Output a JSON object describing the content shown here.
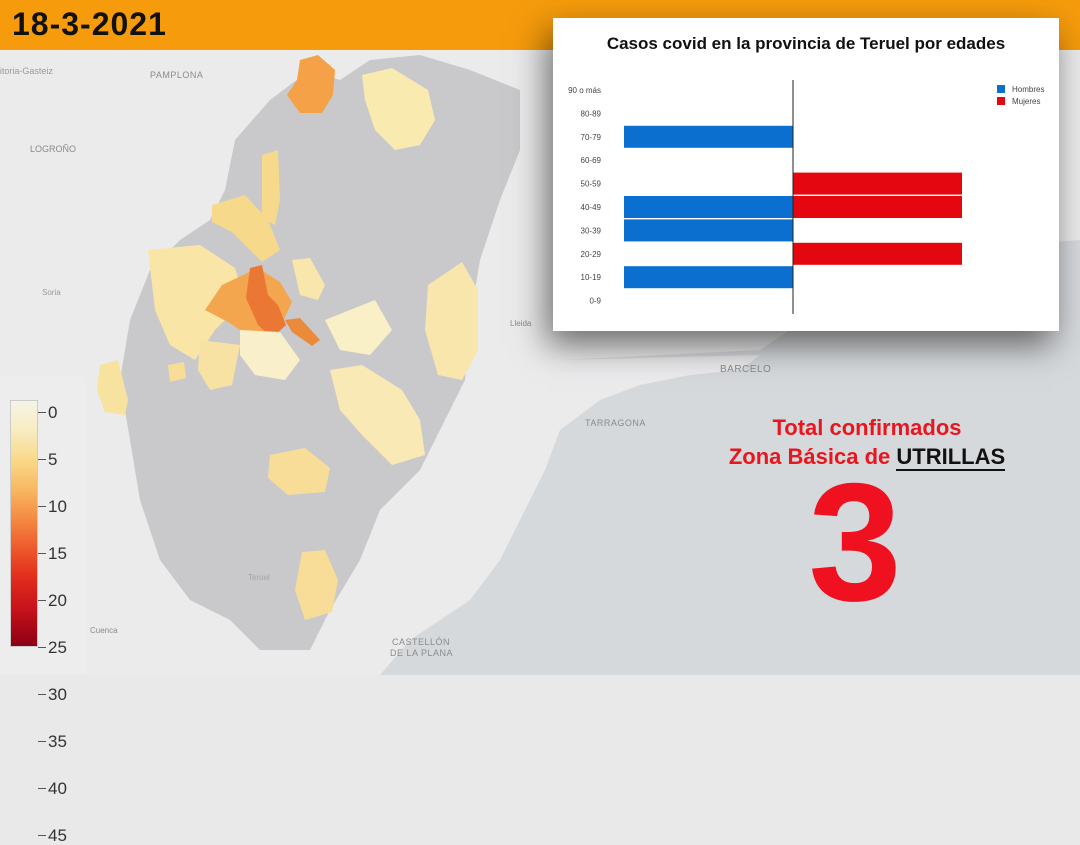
{
  "date": "18-3-2021",
  "map_labels": {
    "pamplona": "PAMPLONA",
    "logrono": "LOGROÑO",
    "vitoria": "Vitoria-Gasteiz",
    "soria": "Soria",
    "lleida": "Lleida",
    "barcelona": "BARCELO",
    "tarragona": "TARRAGONA",
    "cuenca": "Cuenca",
    "castellon1": "CASTELLÓN",
    "castellon2": "DE LA PLANA",
    "teruel": "Teruel"
  },
  "legend": {
    "ticks": [
      "0",
      "5",
      "10",
      "15",
      "20",
      "25",
      "30",
      "35",
      "40",
      "45"
    ]
  },
  "colors": {
    "date_bar": "#f59b0c",
    "hombres": "#0a6fcf",
    "mujeres": "#e4070f",
    "total_text": "#e8161e"
  },
  "total": {
    "line1": "Total confirmados",
    "line2_prefix": "Zona Básica de",
    "zone": "UTRILLAS",
    "value": "3"
  },
  "chart_data": {
    "type": "bar",
    "orientation": "horizontal",
    "title": "Casos covid en la provincia de Teruel por edades",
    "categories": [
      "90 o más",
      "80-89",
      "70-79",
      "60-69",
      "50-59",
      "40-49",
      "30-39",
      "20-29",
      "10-19",
      "0-9"
    ],
    "series": [
      {
        "name": "Hombres",
        "values": [
          0,
          0,
          1,
          0,
          0,
          1,
          1,
          0,
          1,
          0
        ],
        "direction": "left",
        "color": "#0a6fcf"
      },
      {
        "name": "Mujeres",
        "values": [
          0,
          0,
          0,
          0,
          1,
          1,
          0,
          1,
          0,
          0
        ],
        "direction": "right",
        "color": "#e4070f"
      }
    ],
    "xlim": [
      -1,
      1
    ],
    "legend_position": "top-right",
    "grid": false
  }
}
